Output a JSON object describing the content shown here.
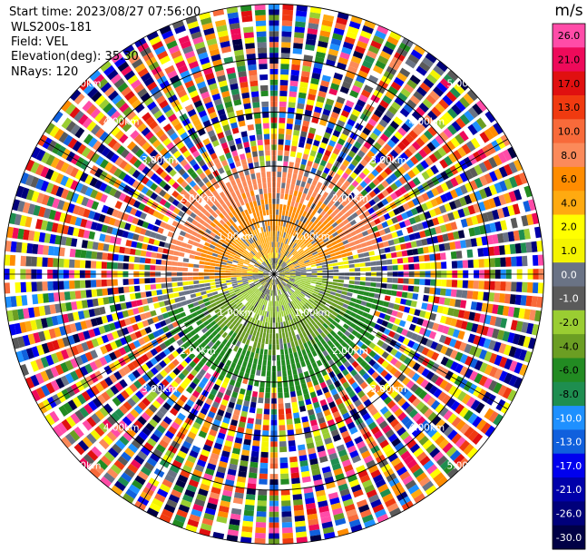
{
  "info": {
    "start_time": "Start time: 2023/08/27 07:56:00",
    "instrument": "WLS200s-181",
    "field": "Field: VEL",
    "elevation": "Elevation(deg): 35.30",
    "nrays": "NRays: 120"
  },
  "chart_data": {
    "type": "heatmap",
    "projection": "polar-ppi",
    "field": "VEL",
    "units": "m/s",
    "range_rings_km": [
      1,
      2,
      3,
      4,
      5
    ],
    "range_label_suffix": "km",
    "colorbar": {
      "label": "m/s",
      "ticks": [
        26.0,
        21.0,
        17.0,
        13.0,
        10.0,
        8.0,
        6.0,
        4.0,
        2.0,
        1.0,
        0.0,
        -1.0,
        -2.0,
        -4.0,
        -6.0,
        -8.0,
        -10.0,
        -13.0,
        -17.0,
        -21.0,
        -26.0,
        -30.0
      ],
      "colors": [
        "#ff4ca8",
        "#ee0a5a",
        "#e01010",
        "#f03a10",
        "#f86a3a",
        "#fb8a5a",
        "#ff8c00",
        "#ffaa10",
        "#ffff00",
        "#f4f400",
        "#6a7385",
        "#5a5a5a",
        "#9acd32",
        "#6b9e23",
        "#228b22",
        "#1e8e50",
        "#1e90ff",
        "#1060dd",
        "#0000ee",
        "#0000aa",
        "#00007a",
        "#000045"
      ]
    },
    "coherent_region": {
      "northern_sector": {
        "azimuth_deg": [
          265,
          75
        ],
        "values_mps": [
          2,
          4,
          6,
          8
        ]
      },
      "southern_sector": {
        "azimuth_deg": [
          95,
          250
        ],
        "values_mps": [
          -1,
          -2,
          -4,
          -6
        ]
      },
      "near_transition": {
        "values_mps": [
          1,
          0,
          -1
        ]
      },
      "max_range_km": 2.2
    },
    "noise_beyond_km": 2.0
  }
}
